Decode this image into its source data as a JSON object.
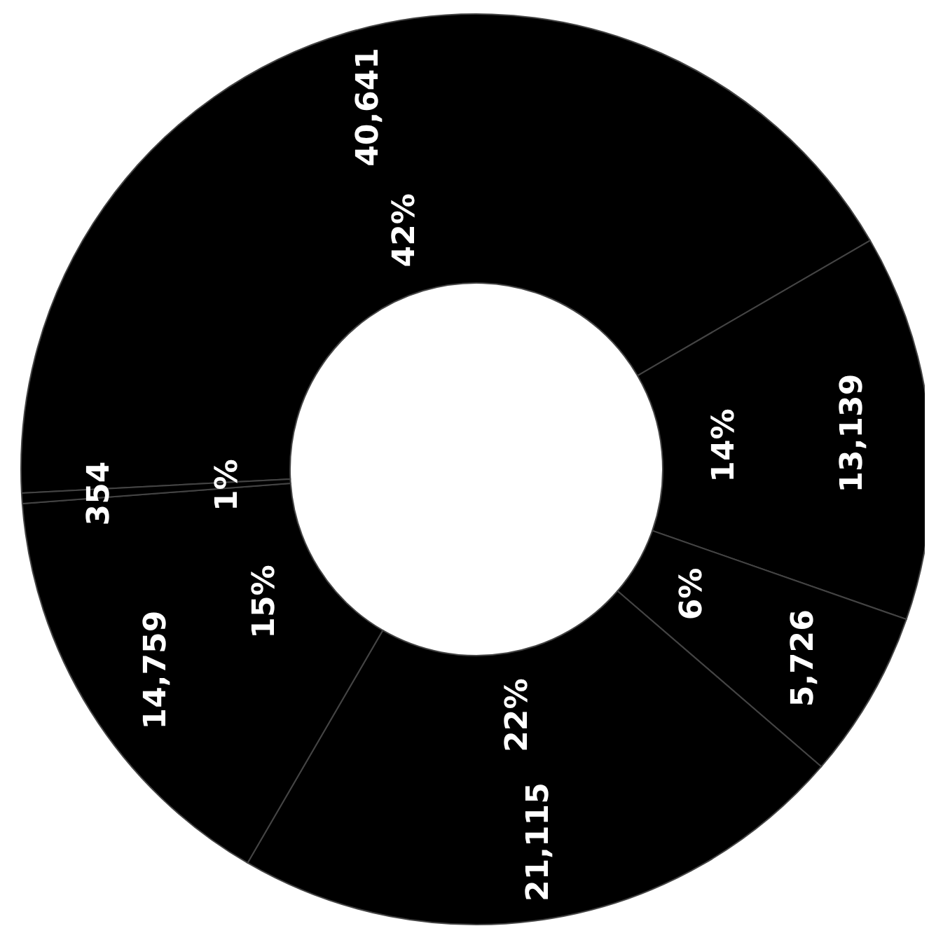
{
  "chart_data": {
    "type": "donut",
    "categories": [
      null,
      null,
      null,
      null,
      null,
      null
    ],
    "values": [
      40641,
      13139,
      5726,
      21115,
      14759,
      354
    ],
    "colors": [
      "#000000",
      "#000000",
      "#000000",
      "#000000",
      "#000000",
      "#000000"
    ],
    "value_labels": [
      "40,641",
      "13,139",
      "5,726",
      "21,115",
      "14,759",
      "354"
    ],
    "annotations": [
      "42%",
      "14%",
      "6%",
      "22%",
      "15%",
      "1%"
    ]
  }
}
